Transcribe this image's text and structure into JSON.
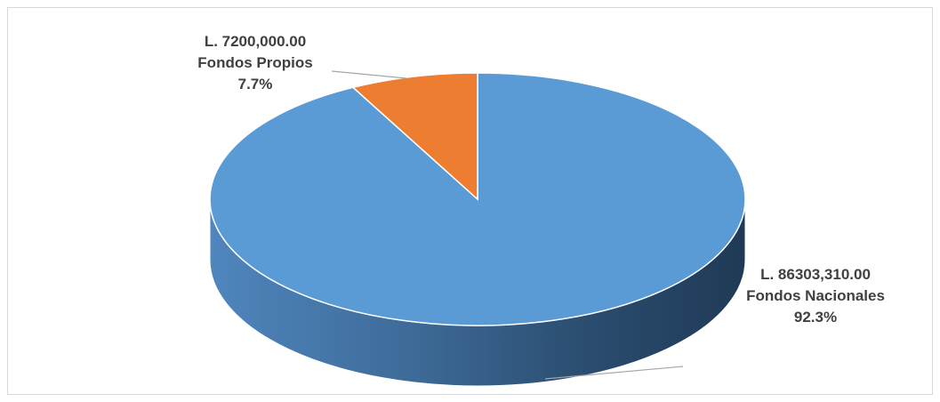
{
  "chart_data": {
    "type": "pie",
    "style": "3d",
    "title": "",
    "slices": [
      {
        "name": "Fondos Nacionales",
        "value_label": "L.  86303,310.00",
        "value": 86303310.0,
        "percent_label": "92.3%",
        "percent": 92.3,
        "color": "#5B9BD5"
      },
      {
        "name": "Fondos Propios",
        "value_label": "L.  7200,000.00",
        "value": 7200000.0,
        "percent_label": "7.7%",
        "percent": 7.7,
        "color": "#ED7D31"
      }
    ],
    "legend": "none",
    "data_labels": "outside-with-leader-lines"
  }
}
